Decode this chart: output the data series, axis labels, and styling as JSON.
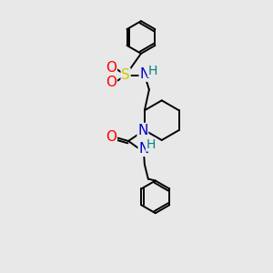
{
  "background_color": "#e8e8e8",
  "atoms": {
    "S": {
      "color": "#cccc00",
      "fontsize": 11
    },
    "O": {
      "color": "#ff0000",
      "fontsize": 11
    },
    "N": {
      "color": "#0000cc",
      "fontsize": 11
    },
    "NH": {
      "color": "#0000cc",
      "fontsize": 11
    },
    "H": {
      "color": "#008080",
      "fontsize": 10
    }
  },
  "bond_color": "#000000",
  "bond_width": 1.4
}
